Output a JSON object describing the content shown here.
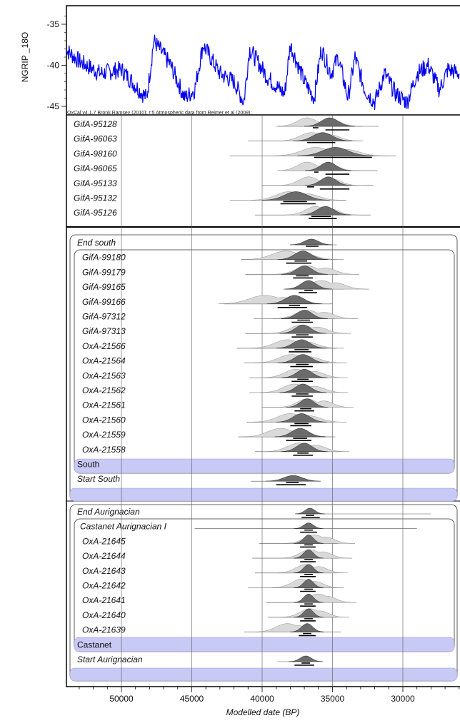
{
  "chart_data": {
    "type": "ranges",
    "xlabel": "Modelled date (BP)",
    "x_ticks": [
      50000,
      45000,
      40000,
      35000,
      30000
    ],
    "xlim": [
      54000,
      26000
    ],
    "climate": {
      "ylabel": "NGRIP _18O",
      "y_ticks": [
        -35,
        -40,
        -45
      ],
      "ylim": [
        -45.5,
        -33
      ],
      "credit": "OxCal v4.1.7 Bronk Ramsey (2010); r:5 Atmospheric data from Reimer et al (2009);",
      "color": "#0000ee"
    },
    "colors": {
      "prior": "#d9d9d9",
      "posterior": "#6b6b6b",
      "phase_band": "#c9c9f5",
      "climate_line": "#0000ee"
    },
    "items": [
      {
        "label": "GifA-95128",
        "kind": "date",
        "prior": [
          36800,
          35000,
          700
        ],
        "post": [
          35200,
          600
        ],
        "range": [
          39000,
          31700
        ],
        "bars": [
          [
            36400,
            36000
          ],
          [
            35500,
            33800
          ]
        ]
      },
      {
        "label": "GifA-96063",
        "kind": "date",
        "prior": [
          36500,
          35200,
          800
        ],
        "post": [
          35700,
          700
        ],
        "range": [
          41000,
          33000
        ],
        "bars": [
          [
            36800,
            34800
          ]
        ]
      },
      {
        "label": "GifA-98160",
        "kind": "date",
        "prior": [
          36200,
          34000,
          1000
        ],
        "post": [
          34800,
          900
        ],
        "range": [
          42300,
          30500
        ],
        "bars": [
          [
            36300,
            32200
          ]
        ]
      },
      {
        "label": "GifA-96065",
        "kind": "date",
        "prior": [
          36800,
          35200,
          700
        ],
        "post": [
          35300,
          550
        ],
        "range": [
          38500,
          31800
        ],
        "bars": [
          [
            36300,
            36000
          ],
          [
            35500,
            33800
          ]
        ]
      },
      {
        "label": "GifA-95133",
        "kind": "date",
        "prior": [
          36700,
          35000,
          700
        ],
        "post": [
          35300,
          550
        ],
        "range": [
          40000,
          32100
        ],
        "bars": [
          [
            36800,
            36300
          ],
          [
            35900,
            33800
          ]
        ]
      },
      {
        "label": "GifA-95132",
        "kind": "date",
        "prior": [
          38100,
          36800,
          900
        ],
        "post": [
          37600,
          800
        ],
        "range": [
          42300,
          34000
        ],
        "bars": [
          [
            38500,
            36800
          ],
          [
            38700,
            36200
          ]
        ]
      },
      {
        "label": "GifA-95126",
        "kind": "date",
        "prior": [
          36200,
          35200,
          700
        ],
        "post": [
          35500,
          600
        ],
        "range": [
          40500,
          32300
        ],
        "bars": [
          [
            36500,
            35100
          ],
          [
            36700,
            34700
          ]
        ]
      },
      {
        "label": "End south",
        "kind": "boundary",
        "post": [
          36500,
          500
        ],
        "range": [
          37700,
          34700
        ],
        "bars": [
          [
            36900,
            36000
          ]
        ]
      },
      {
        "label": "GifA-99180",
        "kind": "date",
        "prior": [
          38300,
          37200,
          1000
        ],
        "post": [
          37100,
          600
        ],
        "range": [
          41500,
          35000
        ],
        "bars": [
          [
            37700,
            36800
          ],
          [
            38300,
            36500
          ]
        ]
      },
      {
        "label": "GifA-99179",
        "kind": "date",
        "prior": [
          36800,
          35500,
          800
        ],
        "post": [
          37000,
          550
        ],
        "range": [
          41200,
          34600
        ],
        "bars": [
          [
            37600,
            36700
          ],
          [
            37800,
            36400
          ]
        ]
      },
      {
        "label": "GifA-99165",
        "kind": "date",
        "prior": [
          35800,
          34800,
          800
        ],
        "post": [
          36700,
          550
        ],
        "range": [
          38500,
          34200
        ],
        "bars": [
          [
            37000,
            36400
          ],
          [
            37400,
            36100
          ]
        ]
      },
      {
        "label": "GifA-99166",
        "kind": "date",
        "prior": [
          39800,
          38500,
          1100
        ],
        "post": [
          37700,
          650
        ],
        "range": [
          42700,
          35000
        ],
        "bars": [
          [
            38100,
            37300
          ],
          [
            38900,
            36800
          ]
        ]
      },
      {
        "label": "GifA-97312",
        "kind": "date",
        "prior": [
          36800,
          35600,
          800
        ],
        "post": [
          37000,
          550
        ],
        "range": [
          40600,
          34800
        ],
        "bars": [
          [
            37500,
            36600
          ],
          [
            37900,
            36400
          ]
        ]
      },
      {
        "label": "GifA-97313",
        "kind": "date",
        "prior": [
          37200,
          36100,
          800
        ],
        "post": [
          37100,
          550
        ],
        "range": [
          41200,
          34800
        ],
        "bars": [
          [
            37600,
            36700
          ],
          [
            37900,
            36400
          ]
        ]
      },
      {
        "label": "OxA-21566",
        "kind": "date",
        "prior": [
          38200,
          36900,
          900
        ],
        "post": [
          37200,
          600
        ],
        "range": [
          41800,
          34700
        ],
        "bars": [
          [
            37700,
            36700
          ],
          [
            38100,
            36500
          ]
        ]
      },
      {
        "label": "OxA-21564",
        "kind": "date",
        "prior": [
          37900,
          36700,
          900
        ],
        "post": [
          37100,
          600
        ],
        "range": [
          41300,
          34700
        ],
        "bars": [
          [
            37600,
            36700
          ],
          [
            38000,
            36400
          ]
        ]
      },
      {
        "label": "OxA-21563",
        "kind": "date",
        "prior": [
          37600,
          36300,
          800
        ],
        "post": [
          37000,
          550
        ],
        "range": [
          40900,
          34800
        ],
        "bars": [
          [
            37500,
            36700
          ],
          [
            37900,
            36400
          ]
        ]
      },
      {
        "label": "OxA-21562",
        "kind": "date",
        "prior": [
          37700,
          36300,
          800
        ],
        "post": [
          37100,
          550
        ],
        "range": [
          40900,
          34800
        ],
        "bars": [
          [
            37600,
            36700
          ],
          [
            37900,
            36400
          ]
        ]
      },
      {
        "label": "OxA-21561",
        "kind": "date",
        "prior": [
          36800,
          35600,
          700
        ],
        "post": [
          36800,
          500
        ],
        "range": [
          40000,
          34500
        ],
        "bars": [
          [
            37300,
            36500
          ],
          [
            37700,
            36300
          ]
        ]
      },
      {
        "label": "OxA-21560",
        "kind": "date",
        "prior": [
          38000,
          36700,
          900
        ],
        "post": [
          37200,
          600
        ],
        "range": [
          41100,
          34900
        ],
        "bars": [
          [
            37700,
            36700
          ],
          [
            38000,
            36500
          ]
        ]
      },
      {
        "label": "OxA-21559",
        "kind": "date",
        "prior": [
          38700,
          37500,
          900
        ],
        "post": [
          37300,
          600
        ],
        "range": [
          41700,
          34900
        ],
        "bars": [
          [
            37800,
            36800
          ],
          [
            38300,
            36500
          ]
        ]
      },
      {
        "label": "OxA-21558",
        "kind": "date",
        "prior": [
          37400,
          36200,
          800
        ],
        "post": [
          37000,
          550
        ],
        "range": [
          40500,
          34500
        ],
        "bars": [
          [
            37500,
            36700
          ],
          [
            37800,
            36400
          ]
        ]
      },
      {
        "label": "South",
        "kind": "phase"
      },
      {
        "label": "Start South",
        "kind": "boundary",
        "post": [
          37800,
          650
        ],
        "range": [
          40800,
          36700
        ],
        "bars": [
          [
            38300,
            37400
          ],
          [
            39000,
            36900
          ]
        ]
      },
      {
        "label": "",
        "kind": "band"
      },
      {
        "label": "End Aurignacian",
        "kind": "boundary",
        "post": [
          36600,
          350
        ],
        "range": [
          37400,
          28000
        ],
        "bars": [
          [
            36900,
            36300
          ],
          [
            37200,
            35900
          ]
        ]
      },
      {
        "label": "Castanet Aurignacian I",
        "kind": "boundary",
        "post": [
          36700,
          350
        ],
        "range": [
          44800,
          29000
        ],
        "bars": [
          [
            37000,
            36400
          ],
          [
            37300,
            36100
          ]
        ]
      },
      {
        "label": "OxA-21645",
        "kind": "date",
        "prior": [
          36300,
          35500,
          700
        ],
        "post": [
          36700,
          350
        ],
        "range": [
          40200,
          34600
        ],
        "bars": [
          [
            37000,
            36400
          ],
          [
            37300,
            36200
          ]
        ]
      },
      {
        "label": "OxA-21644",
        "kind": "date",
        "prior": [
          36600,
          35700,
          700
        ],
        "post": [
          36700,
          350
        ],
        "range": [
          40700,
          34600
        ],
        "bars": [
          [
            37000,
            36400
          ],
          [
            37300,
            36200
          ]
        ]
      },
      {
        "label": "OxA-21643",
        "kind": "date",
        "prior": [
          36900,
          36000,
          700
        ],
        "post": [
          36700,
          350
        ],
        "range": [
          40500,
          34700
        ],
        "bars": [
          [
            37000,
            36400
          ],
          [
            37300,
            36200
          ]
        ]
      },
      {
        "label": "OxA-21642",
        "kind": "date",
        "prior": [
          37200,
          36300,
          700
        ],
        "post": [
          36700,
          350
        ],
        "range": [
          41000,
          34700
        ],
        "bars": [
          [
            37000,
            36400
          ],
          [
            37300,
            36200
          ]
        ]
      },
      {
        "label": "OxA-21641",
        "kind": "date",
        "prior": [
          36000,
          35400,
          700
        ],
        "post": [
          36700,
          350
        ],
        "range": [
          39700,
          34300
        ],
        "bars": [
          [
            37000,
            36400
          ],
          [
            37300,
            36200
          ]
        ]
      },
      {
        "label": "OxA-21640",
        "kind": "date",
        "prior": [
          36600,
          35900,
          700
        ],
        "post": [
          36700,
          350
        ],
        "range": [
          39600,
          34700
        ],
        "bars": [
          [
            37000,
            36400
          ],
          [
            37300,
            36200
          ]
        ]
      },
      {
        "label": "OxA-21639",
        "kind": "date",
        "prior": [
          38200,
          37400,
          800
        ],
        "post": [
          36800,
          400
        ],
        "range": [
          41300,
          34400
        ],
        "bars": [
          [
            37100,
            36500
          ],
          [
            37400,
            36200
          ]
        ]
      },
      {
        "label": "Castanet",
        "kind": "phase"
      },
      {
        "label": "Start Aurignacian",
        "kind": "boundary",
        "post": [
          36900,
          400
        ],
        "range": [
          38900,
          36500
        ],
        "bars": [
          [
            37200,
            36600
          ],
          [
            37700,
            36300
          ]
        ]
      },
      {
        "label": "",
        "kind": "band"
      }
    ]
  }
}
